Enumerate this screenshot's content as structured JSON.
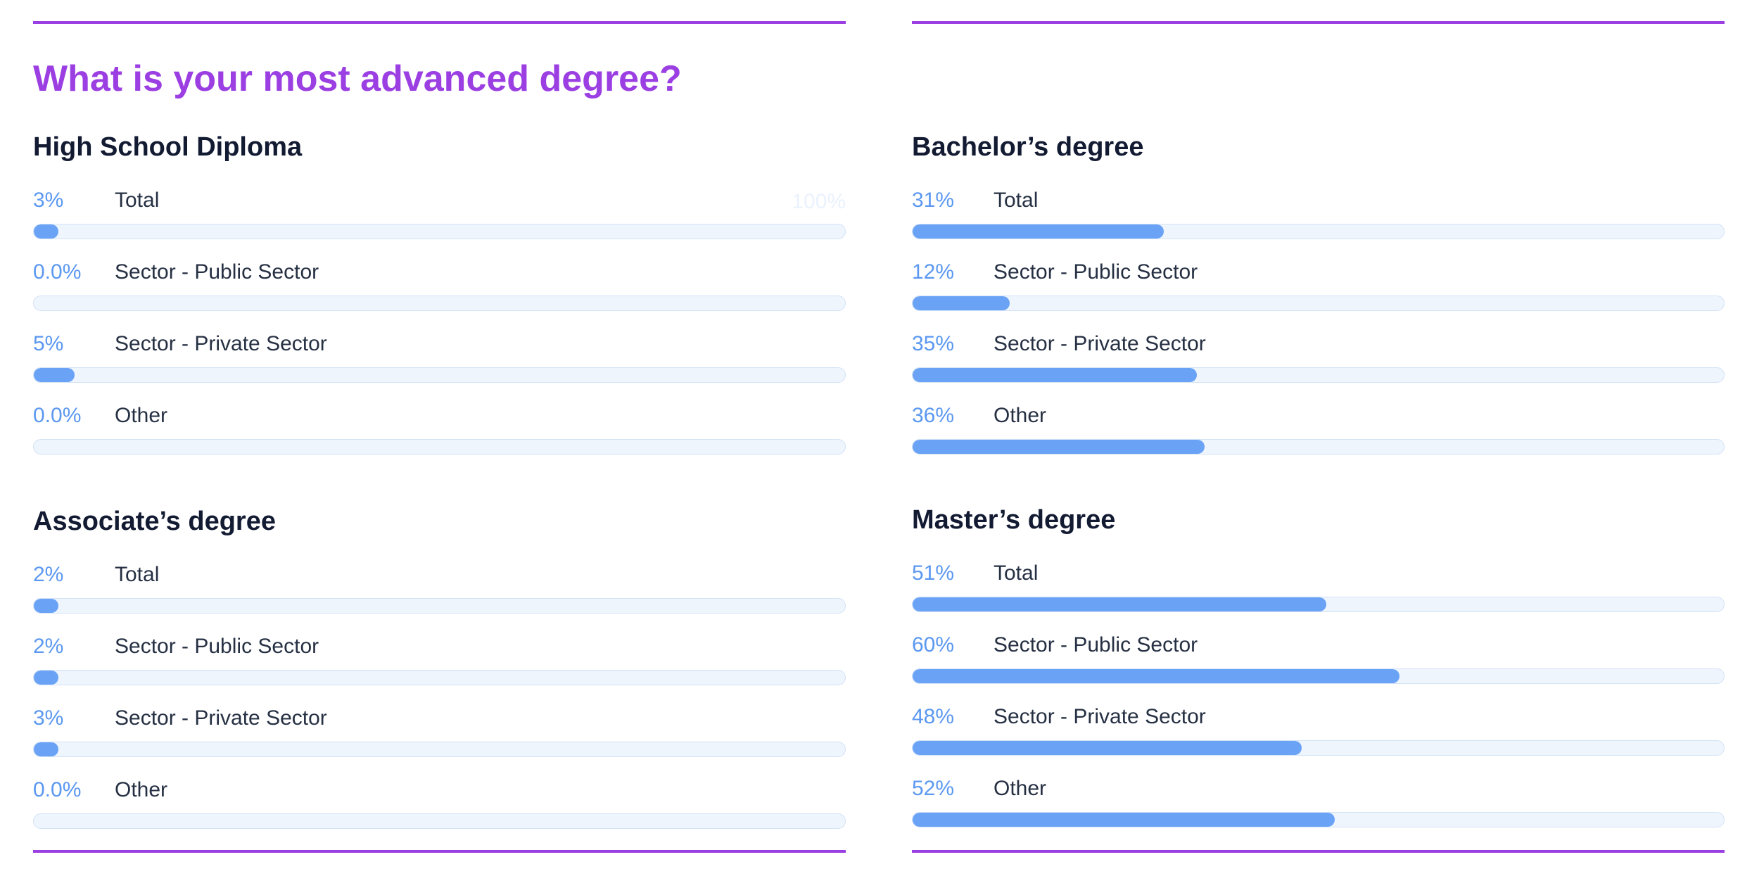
{
  "page_title": "What is your most advanced degree?",
  "colors": {
    "accent": "#9b3fe2",
    "bar_fill": "#6aa3f6",
    "bar_track": "#eff5fd",
    "percent_text": "#5b98f0",
    "heading_text": "#131b33"
  },
  "chart_data": [
    {
      "type": "bar",
      "title": "High School Diploma",
      "scale_max_label": "100%",
      "xlim": [
        0,
        100
      ],
      "categories": [
        "Total",
        "Sector - Public Sector",
        "Sector - Private Sector",
        "Other"
      ],
      "values": [
        3,
        0,
        5,
        0
      ],
      "labels": [
        "3%",
        "0.0%",
        "5%",
        "0.0%"
      ]
    },
    {
      "type": "bar",
      "title": "Associate’s degree",
      "xlim": [
        0,
        100
      ],
      "categories": [
        "Total",
        "Sector - Public Sector",
        "Sector - Private Sector",
        "Other"
      ],
      "values": [
        2,
        2,
        3,
        0
      ],
      "labels": [
        "2%",
        "2%",
        "3%",
        "0.0%"
      ]
    },
    {
      "type": "bar",
      "title": "Bachelor’s degree",
      "xlim": [
        0,
        100
      ],
      "categories": [
        "Total",
        "Sector - Public Sector",
        "Sector - Private Sector",
        "Other"
      ],
      "values": [
        31,
        12,
        35,
        36
      ],
      "labels": [
        "31%",
        "12%",
        "35%",
        "36%"
      ]
    },
    {
      "type": "bar",
      "title": "Master’s degree",
      "xlim": [
        0,
        100
      ],
      "categories": [
        "Total",
        "Sector - Public Sector",
        "Sector - Private Sector",
        "Other"
      ],
      "values": [
        51,
        60,
        48,
        52
      ],
      "labels": [
        "51%",
        "60%",
        "48%",
        "52%"
      ]
    }
  ]
}
